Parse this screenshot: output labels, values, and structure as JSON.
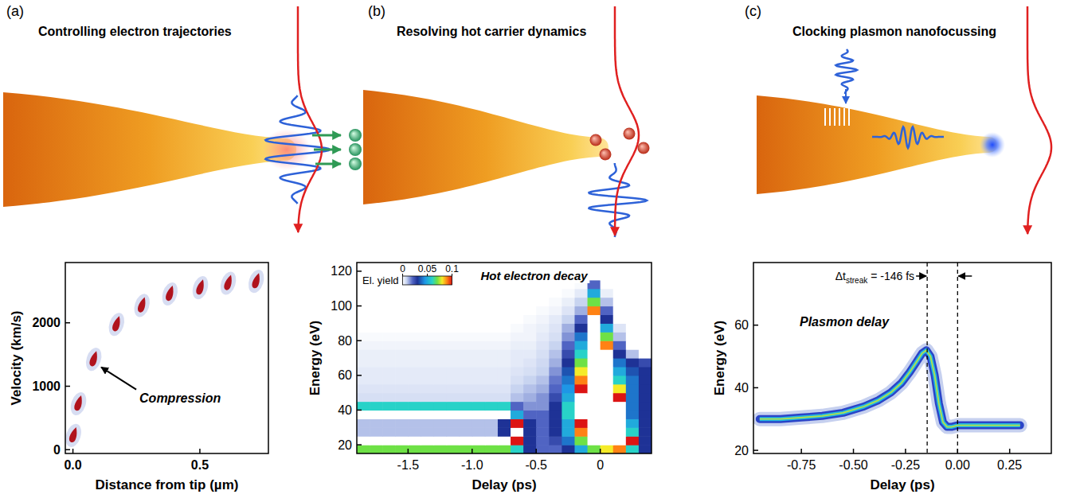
{
  "chart_data": [
    {
      "type": "scatter",
      "panel": "(a)",
      "title": "Controlling electron trajectories",
      "x_label": "Distance from tip (µm)",
      "y_label": "Velocity (km/s)",
      "x": [
        0.0,
        0.02,
        0.08,
        0.17,
        0.27,
        0.38,
        0.5,
        0.61,
        0.72
      ],
      "values": [
        200,
        700,
        1400,
        1950,
        2250,
        2430,
        2530,
        2600,
        2630
      ],
      "color": "#b0131d",
      "xlim": [
        -0.03,
        0.77
      ],
      "ylim": [
        -60,
        2950
      ],
      "xticks": [
        {
          "value": 0,
          "label": "0.0"
        },
        0.5
      ],
      "yticks": [
        0,
        1000,
        2000
      ],
      "annotations": [
        {
          "text": "Compression",
          "x": 0.08,
          "y": 1400
        }
      ]
    },
    {
      "type": "heatmap",
      "panel": "(b)",
      "title": "Resolving hot carrier dynamics",
      "x_label": "Delay (ps)",
      "y_label": "Energy (eV)",
      "x": [
        -1.85,
        -1.75,
        -1.65,
        -1.55,
        -1.45,
        -1.35,
        -1.25,
        -1.15,
        -1.05,
        -0.95,
        -0.85,
        -0.75,
        -0.65,
        -0.55,
        -0.45,
        -0.35,
        -0.25,
        -0.15,
        -0.05,
        0.05,
        0.15,
        0.25,
        0.35
      ],
      "y": [
        17.5,
        22.5,
        27.5,
        32.5,
        37.5,
        42.5,
        47.5,
        52.5,
        57.5,
        62.5,
        67.5,
        72.5,
        77.5,
        82.5,
        87.5,
        92.5,
        97.5,
        102.5,
        107.5,
        112.5,
        117.5,
        122.5
      ],
      "z": [
        [
          0.07,
          0.07,
          0.07,
          0.07,
          0.07,
          0.07,
          0.07,
          0.07,
          0.07,
          0.07,
          0.07,
          0.07,
          0.06,
          0.03,
          0.02,
          0.02,
          0.03,
          0.05,
          0.07,
          0.08,
          0.09,
          0.06,
          0.03
        ],
        [
          0.15,
          0.15,
          0.15,
          0.15,
          0.15,
          0.15,
          0.15,
          0.15,
          0.15,
          0.15,
          0.15,
          0.15,
          0.1,
          0.03,
          0.02,
          0.025,
          0.04,
          0.07,
          0.12,
          0.15,
          0.15,
          0.1,
          0.03
        ],
        [
          0.01,
          0.01,
          0.01,
          0.01,
          0.01,
          0.01,
          0.01,
          0.01,
          0.01,
          0.01,
          0.01,
          0.03,
          0.12,
          0.03,
          0.02,
          0.03,
          0.05,
          0.09,
          0.15,
          0.15,
          0.15,
          0.06,
          0.03
        ],
        [
          0.01,
          0.01,
          0.01,
          0.01,
          0.01,
          0.01,
          0.01,
          0.01,
          0.01,
          0.01,
          0.01,
          0.03,
          0.1,
          0.03,
          0.02,
          0.03,
          0.05,
          0.1,
          0.15,
          0.15,
          0.15,
          0.05,
          0.03
        ],
        [
          0.15,
          0.15,
          0.15,
          0.15,
          0.15,
          0.15,
          0.15,
          0.15,
          0.15,
          0.15,
          0.15,
          0.15,
          0.05,
          0.02,
          0.02,
          0.03,
          0.06,
          0.12,
          0.15,
          0.15,
          0.15,
          0.04,
          0.03
        ],
        [
          0.06,
          0.06,
          0.06,
          0.06,
          0.06,
          0.06,
          0.06,
          0.06,
          0.06,
          0.06,
          0.06,
          0.06,
          0.02,
          0.015,
          0.015,
          0.03,
          0.06,
          0.12,
          0.15,
          0.15,
          0.12,
          0.04,
          0.03
        ],
        [
          0.006,
          0.006,
          0.006,
          0.006,
          0.006,
          0.006,
          0.006,
          0.006,
          0.006,
          0.006,
          0.006,
          0.006,
          0.01,
          0.012,
          0.015,
          0.025,
          0.05,
          0.11,
          0.15,
          0.15,
          0.1,
          0.04,
          0.03
        ],
        [
          0.005,
          0.005,
          0.005,
          0.005,
          0.005,
          0.005,
          0.005,
          0.005,
          0.005,
          0.005,
          0.005,
          0.005,
          0.008,
          0.01,
          0.012,
          0.02,
          0.045,
          0.1,
          0.15,
          0.15,
          0.08,
          0.04,
          0.03
        ],
        [
          0.004,
          0.004,
          0.004,
          0.004,
          0.004,
          0.004,
          0.004,
          0.004,
          0.004,
          0.004,
          0.004,
          0.004,
          0.006,
          0.008,
          0.01,
          0.018,
          0.04,
          0.09,
          0.15,
          0.15,
          0.06,
          0.04,
          0.03
        ],
        [
          0.004,
          0.004,
          0.004,
          0.004,
          0.004,
          0.004,
          0.004,
          0.004,
          0.004,
          0.004,
          0.004,
          0.004,
          0.005,
          0.006,
          0.008,
          0.015,
          0.035,
          0.08,
          0.15,
          0.15,
          0.05,
          0.035,
          0.03
        ],
        [
          0.003,
          0.003,
          0.003,
          0.003,
          0.003,
          0.003,
          0.003,
          0.003,
          0.003,
          0.003,
          0.003,
          0.003,
          0.004,
          0.005,
          0.007,
          0.012,
          0.03,
          0.07,
          0.15,
          0.13,
          0.04,
          0.03,
          0.025
        ],
        [
          0.003,
          0.003,
          0.003,
          0.003,
          0.003,
          0.003,
          0.003,
          0.003,
          0.003,
          0.003,
          0.003,
          0.003,
          0.004,
          0.004,
          0.006,
          0.01,
          0.025,
          0.06,
          0.15,
          0.11,
          0.03,
          0.01,
          0
        ],
        [
          0.002,
          0.002,
          0.002,
          0.002,
          0.002,
          0.002,
          0.002,
          0.002,
          0.002,
          0.002,
          0.002,
          0.002,
          0.003,
          0.003,
          0.005,
          0.008,
          0.02,
          0.05,
          0.15,
          0.09,
          0.02,
          0,
          0
        ],
        [
          0.001,
          0.001,
          0.001,
          0.001,
          0.001,
          0.001,
          0.001,
          0.001,
          0.001,
          0.001,
          0.001,
          0.001,
          0.002,
          0.002,
          0.004,
          0.006,
          0.015,
          0.04,
          0.14,
          0.07,
          0.01,
          0,
          0
        ],
        [
          0,
          0,
          0,
          0,
          0,
          0,
          0,
          0,
          0,
          0,
          0,
          0,
          0.001,
          0.002,
          0.003,
          0.005,
          0.012,
          0.03,
          0.12,
          0.05,
          0.005,
          0,
          0
        ],
        [
          0,
          0,
          0,
          0,
          0,
          0,
          0,
          0,
          0,
          0,
          0,
          0,
          0,
          0.001,
          0.002,
          0.004,
          0.008,
          0.02,
          0.11,
          0.03,
          0,
          0,
          0
        ],
        [
          0,
          0,
          0,
          0,
          0,
          0,
          0,
          0,
          0,
          0,
          0,
          0,
          0,
          0,
          0.001,
          0.002,
          0.005,
          0.012,
          0.09,
          0.02,
          0,
          0,
          0
        ],
        [
          0,
          0,
          0,
          0,
          0,
          0,
          0,
          0,
          0,
          0,
          0,
          0,
          0,
          0,
          0,
          0.001,
          0.003,
          0.008,
          0.07,
          0.01,
          0,
          0,
          0
        ],
        [
          0,
          0,
          0,
          0,
          0,
          0,
          0,
          0,
          0,
          0,
          0,
          0,
          0,
          0,
          0,
          0,
          0.001,
          0.004,
          0.05,
          0.003,
          0,
          0,
          0
        ],
        [
          0,
          0,
          0,
          0,
          0,
          0,
          0,
          0,
          0,
          0,
          0,
          0,
          0,
          0,
          0,
          0,
          0,
          0.001,
          0.02,
          0,
          0,
          0,
          0
        ],
        [
          0,
          0,
          0,
          0,
          0,
          0,
          0,
          0,
          0,
          0,
          0,
          0,
          0,
          0,
          0,
          0,
          0,
          0,
          0,
          0,
          0,
          0,
          0
        ],
        [
          0,
          0,
          0,
          0,
          0,
          0,
          0,
          0,
          0,
          0,
          0,
          0,
          0,
          0,
          0,
          0,
          0,
          0,
          0,
          0,
          0,
          0,
          0
        ]
      ],
      "colorbar": {
        "label": "El. yield",
        "range": [
          0,
          0.1
        ],
        "ticks": [
          0,
          0.05,
          0.1
        ]
      },
      "xlim": [
        -1.9,
        0.4
      ],
      "ylim": [
        15,
        125
      ],
      "xticks": [
        -1.5,
        {
          "value": -1,
          "label": "-1.0"
        },
        -0.5,
        0
      ],
      "yticks": [
        20,
        40,
        60,
        80,
        100,
        120
      ],
      "annotations": [
        {
          "text": "Hot electron decay"
        }
      ]
    },
    {
      "type": "line",
      "panel": "(c)",
      "title": "Clocking plasmon nanofocussing",
      "x_label": "Delay (ps)",
      "y_label": "Energy (eV)",
      "x": [
        -0.95,
        -0.85,
        -0.75,
        -0.65,
        -0.55,
        -0.45,
        -0.38,
        -0.32,
        -0.27,
        -0.23,
        -0.2,
        -0.17,
        -0.15,
        -0.13,
        -0.11,
        -0.09,
        -0.07,
        -0.05,
        -0.03,
        0,
        0.1,
        0.2,
        0.3
      ],
      "values": [
        30,
        30,
        30.5,
        31,
        32,
        34,
        36,
        38.5,
        41.5,
        45,
        48,
        51,
        52,
        50,
        44,
        35,
        29,
        27.5,
        27.5,
        28,
        28,
        28,
        28
      ],
      "color": "#2a44c8",
      "xlim": [
        -0.98,
        0.45
      ],
      "ylim": [
        19,
        80
      ],
      "xticks": [
        -0.75,
        {
          "value": -0.5,
          "label": "-0.50"
        },
        -0.25,
        {
          "value": 0,
          "label": "0.00"
        },
        0.25
      ],
      "yticks": [
        20,
        40,
        60
      ],
      "vlines": [
        -0.146,
        0
      ],
      "delay_label": {
        "text": "Δt",
        "subscript": "streak",
        "suffix": "= -146 fs"
      },
      "annotations": [
        {
          "text": "Plasmon delay"
        }
      ]
    }
  ]
}
